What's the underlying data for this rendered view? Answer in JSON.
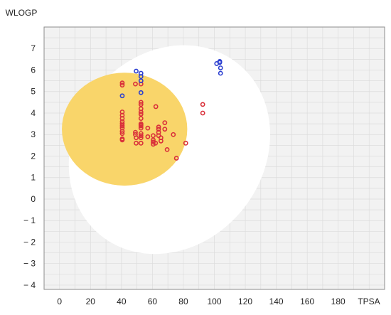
{
  "chart_data": {
    "type": "scatter",
    "title": "",
    "xlabel": "TPSA",
    "ylabel": "WLOGP",
    "xlim": [
      -10,
      210
    ],
    "ylim": [
      -4.2,
      8
    ],
    "x_ticks": [
      0,
      20,
      40,
      60,
      80,
      100,
      120,
      140,
      160,
      180
    ],
    "y_ticks": [
      7,
      6,
      5,
      4,
      3,
      2,
      1,
      0,
      -1,
      -2,
      -3,
      -4
    ],
    "y_tick_labels": [
      "7",
      "6",
      "5",
      "4",
      "3",
      "2",
      "1",
      "0",
      "− 1",
      "− 2",
      "− 3",
      "− 4"
    ],
    "grid": true,
    "legend": "none",
    "colors": {
      "plot_background": "#f2f2f2",
      "grid": "#dcdcdc",
      "white_region": "#ffffff",
      "yolk_region": "#f9d56a",
      "red_points": "#d9303a",
      "blue_points": "#2b3fd0"
    },
    "regions": [
      {
        "name": "white",
        "cx": 71.0,
        "cy": 2.3,
        "rx": 142.0,
        "ry": 8.8,
        "rotation_deg": -52
      },
      {
        "name": "yolk",
        "cx": 42.0,
        "cy": 3.25,
        "rx": 81.0,
        "ry": 5.25,
        "rotation_deg": 0
      }
    ],
    "series": [
      {
        "color": "red",
        "x": [
          40.5,
          40.5,
          40.5,
          40.5,
          40.5,
          40.5,
          40.5,
          40.5,
          40.5,
          40.5,
          40.5,
          40.5,
          40.5,
          49,
          49,
          49,
          49.5,
          49.5,
          52.6,
          52.6,
          52.6,
          52.6,
          52.6,
          52.6,
          52.6,
          52.6,
          52.6,
          52.6,
          52.6,
          52.6,
          52.6,
          52.6,
          52.6,
          57,
          57,
          60.5,
          60.5,
          60.5,
          60.5,
          62,
          62.2,
          64,
          64,
          64,
          64,
          65.5,
          65.5,
          68,
          68,
          69.5,
          73.5,
          75.5,
          81.5,
          92.5,
          92.5
        ],
        "y": [
          5.3,
          5.4,
          4.05,
          3.9,
          3.75,
          3.6,
          3.5,
          3.4,
          3.3,
          3.15,
          3.05,
          2.8,
          2.75,
          5.35,
          3.1,
          3.0,
          2.85,
          2.6,
          5.35,
          4.5,
          4.4,
          4.2,
          4.05,
          3.95,
          3.75,
          3.5,
          3.45,
          3.4,
          3.3,
          3.05,
          2.95,
          2.85,
          2.6,
          3.3,
          2.9,
          2.95,
          2.75,
          2.65,
          2.55,
          2.6,
          4.3,
          3.35,
          3.25,
          3.1,
          2.95,
          2.85,
          2.7,
          3.55,
          3.25,
          2.3,
          3.0,
          1.9,
          2.6,
          4.4,
          4.0
        ]
      },
      {
        "color": "blue",
        "x": [
          40.5,
          49.5,
          52.6,
          52.6,
          52.6,
          52.6,
          101.5,
          103.5,
          103.5,
          104,
          104
        ],
        "y": [
          4.8,
          5.95,
          5.85,
          5.7,
          5.5,
          4.95,
          6.3,
          6.35,
          6.4,
          6.1,
          5.85
        ]
      }
    ]
  }
}
